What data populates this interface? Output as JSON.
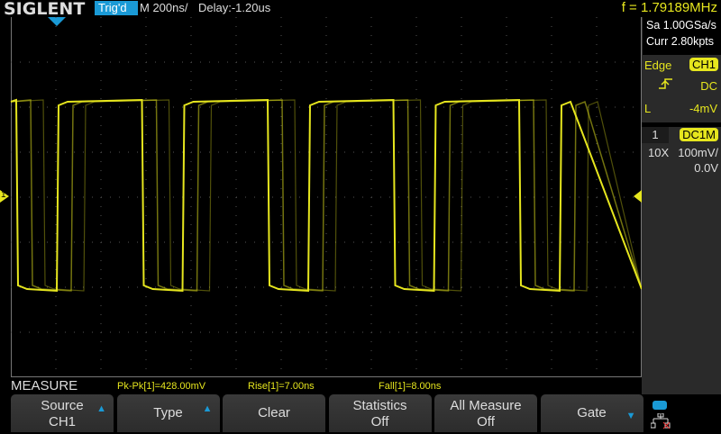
{
  "header": {
    "logo": "SIGLENT",
    "trigger_status": "Trig'd",
    "timebase": "M 200ns/",
    "delay": "Delay:-1.20us",
    "frequency": "f = 1.79189MHz"
  },
  "acquisition": {
    "sample_rate": "Sa 1.00GSa/s",
    "memory": "Curr 2.80kpts"
  },
  "trigger": {
    "type": "Edge",
    "source": "CH1",
    "slope_icon": "rising-edge-icon",
    "coupling": "DC",
    "level_label": "L",
    "level": "-4mV"
  },
  "channel": {
    "number": "1",
    "coupling": "DC1M",
    "probe": "10X",
    "scale": "100mV/",
    "offset": "0.0V",
    "color": "#e6e61e"
  },
  "marker": {
    "channel_label": "1"
  },
  "measure": {
    "title": "MEASURE",
    "values": [
      "Pk-Pk[1]=428.00mV",
      "Rise[1]=7.00ns",
      "Fall[1]=8.00ns"
    ]
  },
  "softkeys": [
    {
      "line1": "Source",
      "line2": "CH1",
      "arrow": "up"
    },
    {
      "line1": "Type",
      "line2": "",
      "arrow": "up"
    },
    {
      "line1": "Clear",
      "line2": "",
      "arrow": ""
    },
    {
      "line1": "Statistics",
      "line2": "Off",
      "arrow": ""
    },
    {
      "line1": "All Measure",
      "line2": "Off",
      "arrow": ""
    },
    {
      "line1": "Gate",
      "line2": "",
      "arrow": "down"
    }
  ]
}
